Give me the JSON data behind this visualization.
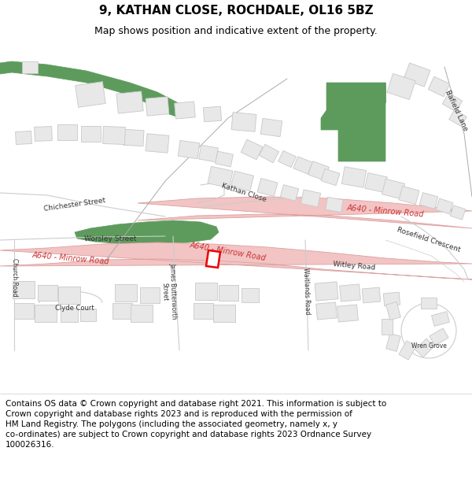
{
  "title": "9, KATHAN CLOSE, ROCHDALE, OL16 5BZ",
  "subtitle": "Map shows position and indicative extent of the property.",
  "footer": "Contains OS data © Crown copyright and database right 2021. This information is subject to\nCrown copyright and database rights 2023 and is reproduced with the permission of\nHM Land Registry. The polygons (including the associated geometry, namely x, y\nco-ordinates) are subject to Crown copyright and database rights 2023 Ordnance Survey\n100026316.",
  "map_bg": "#ffffff",
  "road_pink": "#f2c4c4",
  "road_pink_border": "#dda0a0",
  "building_fill": "#e8e8e8",
  "building_stroke": "#c8c8c8",
  "green_fill": "#5d9b5d",
  "green_stroke": "#5d9b5d",
  "street_color": "#d0d0d0",
  "road_label_color": "#cc3333",
  "street_label_color": "#444444",
  "highlight_color": "#ee0000",
  "title_fontsize": 11,
  "subtitle_fontsize": 9,
  "footer_fontsize": 7.5,
  "figsize": [
    6.0,
    6.25
  ],
  "dpi": 100
}
